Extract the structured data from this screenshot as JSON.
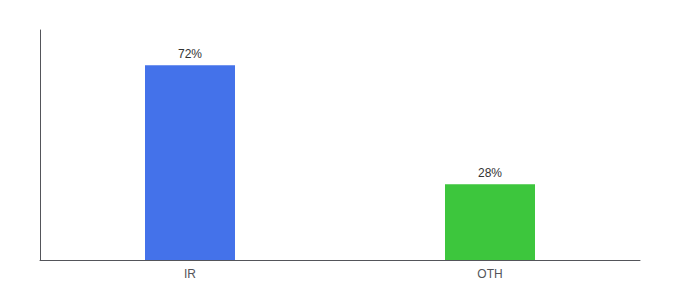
{
  "chart_data": {
    "type": "bar",
    "categories": [
      "IR",
      "OTH"
    ],
    "values": [
      72,
      28
    ],
    "value_labels": [
      "72%",
      "28%"
    ],
    "data_labels": true,
    "colors": [
      "#4472EA",
      "#3DC63D"
    ],
    "ylim": [
      0,
      85
    ],
    "tick_labels": "x",
    "grid": false
  }
}
